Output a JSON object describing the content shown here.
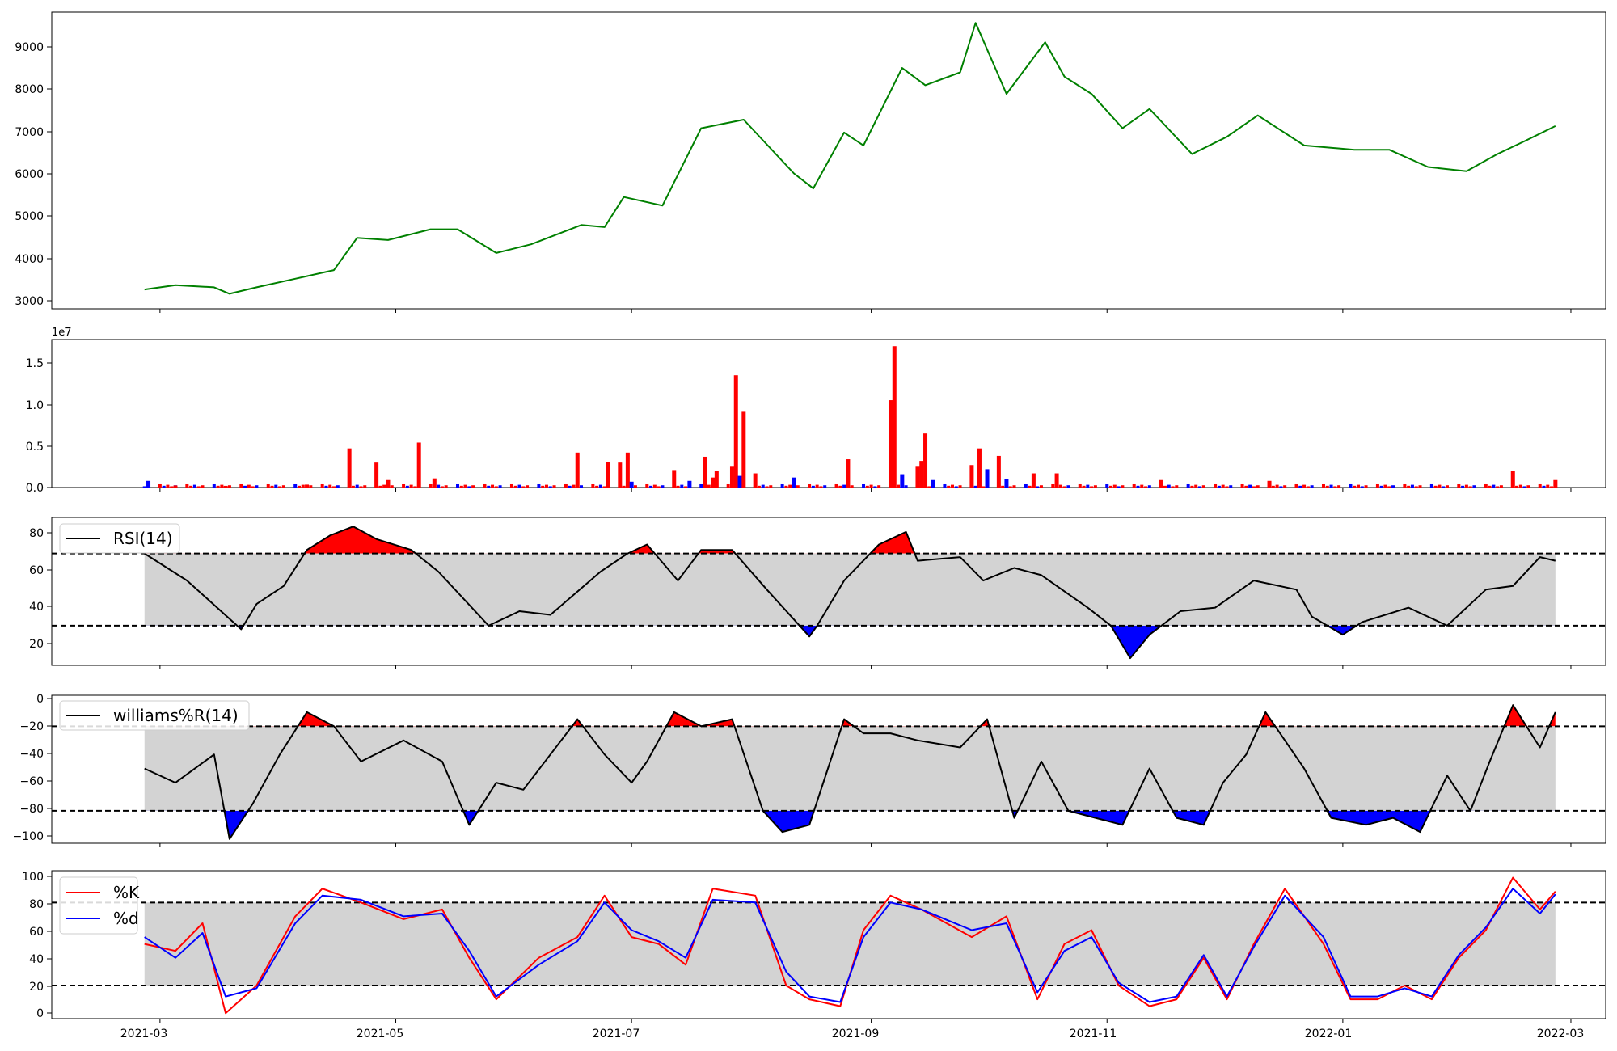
{
  "figure": {
    "background": "#ffffff"
  },
  "colors": {
    "price": "#008000",
    "volume_up": "#ff0000",
    "volume_down": "#0000ff",
    "band": "#d3d3d3",
    "line": "#000000",
    "k": "#ff0000",
    "d": "#0000ff"
  },
  "x_axis": {
    "min": "2021-02-01",
    "max": "2022-03-10",
    "ticks": [
      "2021-03-01",
      "2021-05-01",
      "2021-07-01",
      "2021-09-01",
      "2021-11-01",
      "2022-01-01",
      "2022-03-01"
    ],
    "tick_labels": [
      "2021-03",
      "2021-05",
      "2021-07",
      "2021-09",
      "2021-11",
      "2022-01",
      "2022-03"
    ]
  },
  "chart_data": [
    {
      "type": "line",
      "panel": "price",
      "title": "",
      "xlabel": "",
      "ylabel": "",
      "ylim": [
        2800,
        9700
      ],
      "yticks": [
        3000,
        4000,
        5000,
        6000,
        7000,
        8000,
        9000
      ],
      "ytick_labels": [
        "3000",
        "4000",
        "5000",
        "6000",
        "7000",
        "8000",
        "9000"
      ],
      "grid": false,
      "x": [
        "2021-02-25",
        "2021-03-05",
        "2021-03-15",
        "2021-03-19",
        "2021-03-26",
        "2021-04-05",
        "2021-04-15",
        "2021-04-21",
        "2021-04-29",
        "2021-05-10",
        "2021-05-17",
        "2021-05-27",
        "2021-06-05",
        "2021-06-18",
        "2021-06-24",
        "2021-06-29",
        "2021-07-09",
        "2021-07-19",
        "2021-07-30",
        "2021-08-12",
        "2021-08-17",
        "2021-08-25",
        "2021-08-30",
        "2021-09-09",
        "2021-09-15",
        "2021-09-24",
        "2021-09-28",
        "2021-10-06",
        "2021-10-16",
        "2021-10-21",
        "2021-10-28",
        "2021-11-05",
        "2021-11-12",
        "2021-11-23",
        "2021-12-02",
        "2021-12-10",
        "2021-12-22",
        "2022-01-04",
        "2022-01-13",
        "2022-01-23",
        "2022-02-02",
        "2022-02-10",
        "2022-02-17",
        "2022-02-25"
      ],
      "series": [
        {
          "values": [
            3250,
            3350,
            3300,
            3150,
            3300,
            3500,
            3700,
            4450,
            4400,
            4650,
            4650,
            4100,
            4300,
            4750,
            4700,
            5400,
            5200,
            7000,
            7200,
            5950,
            5600,
            6900,
            6600,
            8400,
            8000,
            8300,
            9450,
            7800,
            9000,
            8200,
            7800,
            7000,
            7450,
            6400,
            6800,
            7300,
            6600,
            6500,
            6500,
            6100,
            6000,
            6400,
            6700,
            7050
          ]
        }
      ]
    },
    {
      "type": "bar",
      "panel": "volume",
      "title": "",
      "xlabel": "",
      "ylabel": "",
      "ylim": [
        0,
        17800000
      ],
      "yticks": [
        0,
        5000000,
        10000000,
        15000000
      ],
      "ytick_labels": [
        "0.0",
        "0.5",
        "1.0",
        "1.5"
      ],
      "offset_label": "1e7",
      "bars": [
        {
          "x": "2021-02-26",
          "value": 800000,
          "dir": "down"
        },
        {
          "x": "2021-03-05",
          "value": 250000,
          "dir": "up"
        },
        {
          "x": "2021-03-18",
          "value": 200000,
          "dir": "up"
        },
        {
          "x": "2021-04-08",
          "value": 350000,
          "dir": "up"
        },
        {
          "x": "2021-04-19",
          "value": 4700000,
          "dir": "up"
        },
        {
          "x": "2021-04-26",
          "value": 3000000,
          "dir": "up"
        },
        {
          "x": "2021-04-29",
          "value": 900000,
          "dir": "up"
        },
        {
          "x": "2021-05-07",
          "value": 5400000,
          "dir": "up"
        },
        {
          "x": "2021-05-11",
          "value": 1100000,
          "dir": "up"
        },
        {
          "x": "2021-06-17",
          "value": 4200000,
          "dir": "up"
        },
        {
          "x": "2021-06-25",
          "value": 3100000,
          "dir": "up"
        },
        {
          "x": "2021-06-28",
          "value": 3000000,
          "dir": "up"
        },
        {
          "x": "2021-06-30",
          "value": 4200000,
          "dir": "up"
        },
        {
          "x": "2021-07-01",
          "value": 700000,
          "dir": "down"
        },
        {
          "x": "2021-07-12",
          "value": 2100000,
          "dir": "up"
        },
        {
          "x": "2021-07-16",
          "value": 800000,
          "dir": "down"
        },
        {
          "x": "2021-07-20",
          "value": 3700000,
          "dir": "up"
        },
        {
          "x": "2021-07-22",
          "value": 1200000,
          "dir": "up"
        },
        {
          "x": "2021-07-23",
          "value": 2000000,
          "dir": "up"
        },
        {
          "x": "2021-07-27",
          "value": 2500000,
          "dir": "up"
        },
        {
          "x": "2021-07-28",
          "value": 13500000,
          "dir": "up"
        },
        {
          "x": "2021-07-29",
          "value": 1400000,
          "dir": "down"
        },
        {
          "x": "2021-07-30",
          "value": 9200000,
          "dir": "up"
        },
        {
          "x": "2021-08-02",
          "value": 1700000,
          "dir": "up"
        },
        {
          "x": "2021-08-12",
          "value": 1200000,
          "dir": "down"
        },
        {
          "x": "2021-08-26",
          "value": 3400000,
          "dir": "up"
        },
        {
          "x": "2021-09-06",
          "value": 10500000,
          "dir": "up"
        },
        {
          "x": "2021-09-07",
          "value": 17000000,
          "dir": "up"
        },
        {
          "x": "2021-09-09",
          "value": 1600000,
          "dir": "down"
        },
        {
          "x": "2021-09-13",
          "value": 2500000,
          "dir": "up"
        },
        {
          "x": "2021-09-14",
          "value": 3200000,
          "dir": "up"
        },
        {
          "x": "2021-09-15",
          "value": 6500000,
          "dir": "up"
        },
        {
          "x": "2021-09-17",
          "value": 900000,
          "dir": "down"
        },
        {
          "x": "2021-09-27",
          "value": 2700000,
          "dir": "up"
        },
        {
          "x": "2021-09-29",
          "value": 4700000,
          "dir": "up"
        },
        {
          "x": "2021-10-01",
          "value": 2200000,
          "dir": "down"
        },
        {
          "x": "2021-10-04",
          "value": 3800000,
          "dir": "up"
        },
        {
          "x": "2021-10-06",
          "value": 1000000,
          "dir": "down"
        },
        {
          "x": "2021-10-13",
          "value": 1700000,
          "dir": "up"
        },
        {
          "x": "2021-10-19",
          "value": 1700000,
          "dir": "up"
        },
        {
          "x": "2021-11-15",
          "value": 900000,
          "dir": "up"
        },
        {
          "x": "2021-12-13",
          "value": 800000,
          "dir": "up"
        },
        {
          "x": "2022-02-14",
          "value": 2000000,
          "dir": "up"
        },
        {
          "x": "2022-02-25",
          "value": 900000,
          "dir": "up"
        }
      ]
    },
    {
      "type": "line",
      "panel": "rsi",
      "title": "",
      "xlabel": "",
      "ylabel": "",
      "ylim": [
        8,
        90
      ],
      "yticks": [
        20,
        40,
        60,
        80
      ],
      "ytick_labels": [
        "20",
        "40",
        "60",
        "80"
      ],
      "thresholds": [
        30,
        70
      ],
      "legend": {
        "position": "upper-left",
        "entries": [
          "RSI(14)"
        ]
      },
      "x": [
        "2021-02-25",
        "2021-03-08",
        "2021-03-22",
        "2021-03-26",
        "2021-04-02",
        "2021-04-08",
        "2021-04-14",
        "2021-04-20",
        "2021-04-26",
        "2021-05-05",
        "2021-05-12",
        "2021-05-25",
        "2021-06-02",
        "2021-06-10",
        "2021-06-23",
        "2021-06-30",
        "2021-07-05",
        "2021-07-13",
        "2021-07-19",
        "2021-07-27",
        "2021-08-05",
        "2021-08-16",
        "2021-08-18",
        "2021-08-25",
        "2021-09-03",
        "2021-09-10",
        "2021-09-13",
        "2021-09-24",
        "2021-09-30",
        "2021-10-08",
        "2021-10-15",
        "2021-10-27",
        "2021-11-02",
        "2021-11-07",
        "2021-11-12",
        "2021-11-20",
        "2021-11-29",
        "2021-12-09",
        "2021-12-20",
        "2021-12-24",
        "2022-01-01",
        "2022-01-06",
        "2022-01-18",
        "2022-01-28",
        "2022-02-07",
        "2022-02-14",
        "2022-02-21",
        "2022-02-25"
      ],
      "series": [
        {
          "name": "RSI(14)",
          "values": [
            70,
            55,
            28,
            42,
            52,
            72,
            80,
            85,
            78,
            72,
            60,
            30,
            38,
            36,
            60,
            70,
            75,
            55,
            72,
            72,
            50,
            24,
            30,
            55,
            75,
            82,
            66,
            68,
            55,
            62,
            58,
            40,
            30,
            12,
            25,
            38,
            40,
            55,
            50,
            35,
            25,
            32,
            40,
            30,
            50,
            52,
            68,
            66
          ]
        }
      ]
    },
    {
      "type": "line",
      "panel": "williams",
      "title": "",
      "xlabel": "",
      "ylabel": "",
      "ylim": [
        -103,
        2
      ],
      "yticks": [
        -100,
        -80,
        -60,
        -40,
        -20,
        0
      ],
      "ytick_labels": [
        "−100",
        "−80",
        "−60",
        "−40",
        "−20",
        "0"
      ],
      "thresholds": [
        -80,
        -20
      ],
      "legend": {
        "position": "upper-left",
        "entries": [
          "williams%R(14)"
        ]
      },
      "x": [
        "2021-02-25",
        "2021-03-05",
        "2021-03-15",
        "2021-03-19",
        "2021-03-25",
        "2021-04-01",
        "2021-04-08",
        "2021-04-15",
        "2021-04-22",
        "2021-05-03",
        "2021-05-13",
        "2021-05-20",
        "2021-05-27",
        "2021-06-03",
        "2021-06-10",
        "2021-06-17",
        "2021-06-24",
        "2021-07-01",
        "2021-07-05",
        "2021-07-12",
        "2021-07-19",
        "2021-07-27",
        "2021-08-04",
        "2021-08-09",
        "2021-08-16",
        "2021-08-25",
        "2021-08-30",
        "2021-09-06",
        "2021-09-13",
        "2021-09-24",
        "2021-10-01",
        "2021-10-08",
        "2021-10-15",
        "2021-10-22",
        "2021-10-29",
        "2021-11-05",
        "2021-11-12",
        "2021-11-19",
        "2021-11-26",
        "2021-12-01",
        "2021-12-07",
        "2021-12-12",
        "2021-12-22",
        "2021-12-29",
        "2022-01-07",
        "2022-01-14",
        "2022-01-21",
        "2022-01-28",
        "2022-02-03",
        "2022-02-08",
        "2022-02-14",
        "2022-02-21",
        "2022-02-25"
      ],
      "series": [
        {
          "name": "williams%R(14)",
          "values": [
            -50,
            -60,
            -40,
            -100,
            -75,
            -40,
            -10,
            -20,
            -45,
            -30,
            -45,
            -90,
            -60,
            -65,
            -40,
            -15,
            -40,
            -60,
            -45,
            -10,
            -20,
            -15,
            -80,
            -95,
            -90,
            -15,
            -25,
            -25,
            -30,
            -35,
            -15,
            -85,
            -45,
            -80,
            -85,
            -90,
            -50,
            -85,
            -90,
            -60,
            -40,
            -10,
            -50,
            -85,
            -90,
            -85,
            -95,
            -55,
            -80,
            -45,
            -5,
            -35,
            -10
          ]
        }
      ]
    },
    {
      "type": "line",
      "panel": "stochastic",
      "title": "",
      "xlabel": "",
      "ylabel": "",
      "ylim": [
        -4,
        103
      ],
      "yticks": [
        0,
        20,
        40,
        60,
        80,
        100
      ],
      "ytick_labels": [
        "0",
        "20",
        "40",
        "60",
        "80",
        "100"
      ],
      "thresholds": [
        20,
        80
      ],
      "legend": {
        "position": "upper-left",
        "entries": [
          "%K",
          "%d"
        ]
      },
      "x": [
        "2021-02-25",
        "2021-03-05",
        "2021-03-12",
        "2021-03-18",
        "2021-03-26",
        "2021-04-05",
        "2021-04-12",
        "2021-04-22",
        "2021-05-03",
        "2021-05-13",
        "2021-05-20",
        "2021-05-27",
        "2021-06-07",
        "2021-06-17",
        "2021-06-24",
        "2021-07-01",
        "2021-07-08",
        "2021-07-15",
        "2021-07-22",
        "2021-08-02",
        "2021-08-10",
        "2021-08-16",
        "2021-08-24",
        "2021-08-30",
        "2021-09-06",
        "2021-09-14",
        "2021-09-27",
        "2021-10-06",
        "2021-10-14",
        "2021-10-21",
        "2021-10-28",
        "2021-11-04",
        "2021-11-12",
        "2021-11-19",
        "2021-11-26",
        "2021-12-02",
        "2021-12-09",
        "2021-12-17",
        "2021-12-27",
        "2022-01-03",
        "2022-01-10",
        "2022-01-17",
        "2022-01-24",
        "2022-01-31",
        "2022-02-07",
        "2022-02-14",
        "2022-02-21",
        "2022-02-25"
      ],
      "series": [
        {
          "name": "%K",
          "values": [
            50,
            45,
            65,
            0,
            20,
            70,
            90,
            80,
            68,
            75,
            40,
            10,
            40,
            55,
            85,
            55,
            50,
            35,
            90,
            85,
            20,
            10,
            5,
            60,
            85,
            75,
            55,
            70,
            10,
            50,
            60,
            20,
            5,
            10,
            40,
            10,
            50,
            90,
            50,
            10,
            10,
            20,
            10,
            40,
            60,
            98,
            75,
            88
          ]
        },
        {
          "name": "%d",
          "values": [
            55,
            40,
            58,
            12,
            18,
            65,
            85,
            82,
            70,
            72,
            45,
            12,
            35,
            52,
            80,
            60,
            52,
            40,
            82,
            80,
            30,
            12,
            8,
            55,
            80,
            75,
            60,
            65,
            15,
            45,
            55,
            22,
            8,
            12,
            42,
            12,
            48,
            85,
            55,
            12,
            12,
            18,
            12,
            42,
            62,
            90,
            72,
            86
          ]
        }
      ]
    }
  ]
}
